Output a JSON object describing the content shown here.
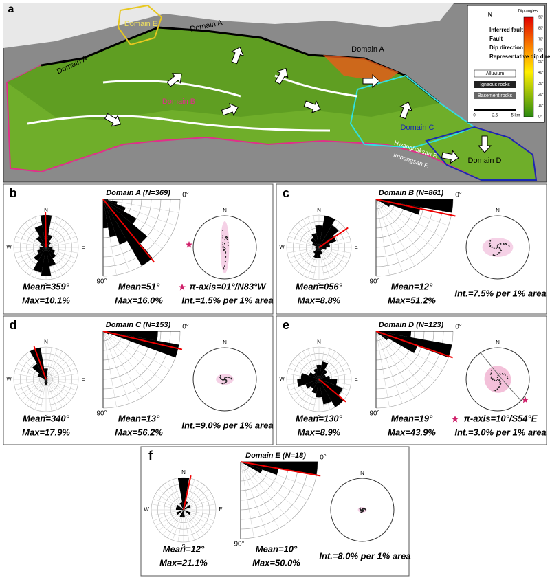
{
  "map": {
    "panel_label": "a",
    "labels": [
      "Domain E",
      "Domain A",
      "Domain A",
      "Domain A",
      "Domain B",
      "Domain C",
      "Domain D"
    ],
    "faults": [
      "Hwanghaksan F.",
      "Imbongsan F."
    ],
    "legend": {
      "items": [
        "Inferred fault",
        "Fault",
        "Dip direction",
        "Representative dip direction"
      ],
      "rocks": [
        "Alluvium",
        "Igneous rocks",
        "Basement rocks"
      ],
      "scale": [
        "0",
        "2.5",
        "5 km"
      ],
      "colorbar_title": "Dip angles",
      "colorbar_ticks": [
        "90°",
        "80°",
        "70°",
        "60°",
        "50°",
        "40°",
        "30°",
        "20°",
        "10°",
        "0°"
      ],
      "north": "N"
    }
  },
  "compass": [
    "N",
    "E",
    "S",
    "W"
  ],
  "dip_axis": [
    "0°",
    "90°"
  ],
  "panels": [
    {
      "letter": "b",
      "title": "Domain A (N=369)",
      "rose": {
        "values": [
          10.1,
          4,
          2,
          1,
          1,
          2,
          3,
          4,
          6,
          9,
          8,
          5,
          3,
          2,
          1,
          2,
          4,
          7
        ],
        "mean": 359,
        "mean_label": "Mean=359°",
        "max_label": "Max=10.1%"
      },
      "dip": {
        "values": [
          1,
          3,
          5,
          8,
          12,
          16,
          10,
          8,
          6
        ],
        "mean": 51,
        "mean_label": "Mean=51°",
        "max_label": "Max=16.0%"
      },
      "stereo": {
        "pi_label": "π-axis=01°/N83°W",
        "int_label": "Int.=1.5% per 1% area"
      }
    },
    {
      "letter": "c",
      "title": "Domain B (N=861)",
      "rose": {
        "values": [
          6,
          8.8,
          7,
          5,
          3,
          2,
          1,
          1,
          2,
          3,
          3,
          2,
          1,
          1,
          1,
          2,
          3,
          4
        ],
        "mean": 56,
        "mean_label": "Mean=056°",
        "max_label": "Max=8.8%"
      },
      "dip": {
        "values": [
          51.2,
          30,
          10,
          3,
          2,
          1,
          0,
          0,
          0
        ],
        "mean": 12,
        "mean_label": "Mean=12°",
        "max_label": "Max=51.2%"
      },
      "stereo": {
        "int_label": "Int.=7.5% per 1% area"
      }
    },
    {
      "letter": "d",
      "title": "Domain C (N=153)",
      "rose": {
        "values": [
          6,
          2,
          1,
          1,
          0.5,
          0.5,
          1,
          1,
          2,
          3,
          2,
          1,
          1,
          1,
          2,
          5,
          10,
          17.9
        ],
        "mean": 340,
        "mean_label": "Mean=340°",
        "max_label": "Max=17.9%"
      },
      "dip": {
        "values": [
          40,
          56.2,
          5,
          2,
          1,
          0,
          0,
          0,
          0
        ],
        "mean": 13,
        "mean_label": "Mean=13°",
        "max_label": "Max=56.2%"
      },
      "stereo": {
        "int_label": "Int.=9.0% per 1% area"
      }
    },
    {
      "letter": "e",
      "title": "Domain D (N=123)",
      "rose": {
        "values": [
          4,
          5,
          3,
          2,
          3,
          5,
          7,
          8.9,
          7,
          5,
          4,
          3,
          4,
          6,
          5,
          3,
          2,
          3
        ],
        "mean": 130,
        "mean_label": "Mean=130°",
        "max_label": "Max=8.9%"
      },
      "dip": {
        "values": [
          20,
          43.9,
          25,
          8,
          3,
          1,
          0,
          0,
          0
        ],
        "mean": 19,
        "mean_label": "Mean=19°",
        "max_label": "Max=43.9%"
      },
      "stereo": {
        "pi_label": "π-axis=10°/S54°E",
        "int_label": "Int.=3.0% per 1% area"
      }
    },
    {
      "letter": "f",
      "title": "Domain E (N=18)",
      "rose": {
        "values": [
          21.1,
          6,
          0,
          5,
          0,
          0,
          5,
          0,
          0,
          5,
          5,
          0,
          5,
          0,
          5,
          5,
          0,
          5
        ],
        "mean": 12,
        "mean_label": "Mean=12°",
        "max_label": "Max=21.1%"
      },
      "dip": {
        "values": [
          50,
          25,
          15,
          0,
          0,
          0,
          0,
          0,
          0
        ],
        "mean": 10,
        "mean_label": "Mean=10°",
        "max_label": "Max=50.0%"
      },
      "stereo": {
        "int_label": "Int.=8.0% per 1% area"
      }
    }
  ]
}
